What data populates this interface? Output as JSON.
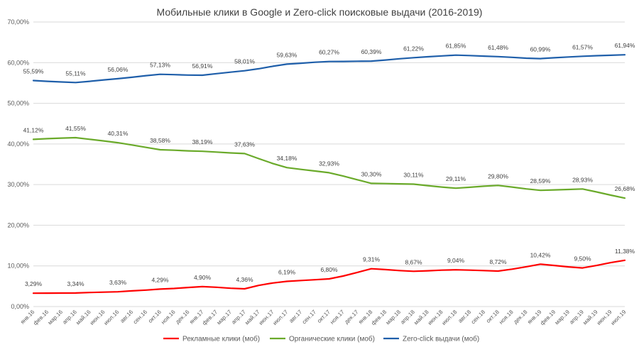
{
  "chart_data": {
    "type": "line",
    "title": "Мобильные клики в Google и Zero-click поисковые выдачи (2016-2019)",
    "x": [
      "янв.16",
      "фев.16",
      "мар.16",
      "апр.16",
      "май.16",
      "июн.16",
      "июл.16",
      "авг.16",
      "сен.16",
      "окт.16",
      "ноя.16",
      "дек.16",
      "янв.17",
      "фев.17",
      "мар.17",
      "апр.17",
      "май.17",
      "июн.17",
      "июл.17",
      "авг.17",
      "сен.17",
      "окт.17",
      "ноя.17",
      "дек.17",
      "янв.18",
      "фев.18",
      "мар.18",
      "апр.18",
      "май.18",
      "июн.18",
      "июл.18",
      "авг.18",
      "сен.18",
      "окт.18",
      "ноя.18",
      "дек.18",
      "янв.19",
      "фев.19",
      "мар.19",
      "апр.19",
      "май.19",
      "июн.19",
      "июл.19"
    ],
    "ylim": [
      0,
      70
    ],
    "yticks": [
      "0,00%",
      "10,00%",
      "20,00%",
      "30,00%",
      "40,00%",
      "50,00%",
      "60,00%",
      "70,00%"
    ],
    "grid": true,
    "legend_position": "bottom",
    "series": [
      {
        "name": "Рекламные клики (моб)",
        "color": "#ff0000",
        "values": [
          3.29,
          3.3,
          3.32,
          3.34,
          3.45,
          3.55,
          3.63,
          3.85,
          4.05,
          4.29,
          4.45,
          4.7,
          4.9,
          4.75,
          4.5,
          4.36,
          5.2,
          5.8,
          6.19,
          6.4,
          6.6,
          6.8,
          7.5,
          8.4,
          9.31,
          9.1,
          8.85,
          8.67,
          8.8,
          8.95,
          9.04,
          8.95,
          8.85,
          8.72,
          9.2,
          9.8,
          10.42,
          10.1,
          9.75,
          9.5,
          10.1,
          10.8,
          11.38
        ],
        "labels": [
          {
            "i": 0,
            "text": "3,29%"
          },
          {
            "i": 3,
            "text": "3,34%"
          },
          {
            "i": 6,
            "text": "3,63%"
          },
          {
            "i": 9,
            "text": "4,29%"
          },
          {
            "i": 12,
            "text": "4,90%"
          },
          {
            "i": 15,
            "text": "4,36%"
          },
          {
            "i": 18,
            "text": "6,19%"
          },
          {
            "i": 21,
            "text": "6,80%"
          },
          {
            "i": 24,
            "text": "9,31%"
          },
          {
            "i": 27,
            "text": "8,67%"
          },
          {
            "i": 30,
            "text": "9,04%"
          },
          {
            "i": 33,
            "text": "8,72%"
          },
          {
            "i": 36,
            "text": "10,42%"
          },
          {
            "i": 39,
            "text": "9,50%"
          },
          {
            "i": 42,
            "text": "11,38%"
          }
        ]
      },
      {
        "name": "Органические клики (моб)",
        "color": "#6aaa2a",
        "values": [
          41.12,
          41.3,
          41.45,
          41.55,
          41.15,
          40.75,
          40.31,
          39.75,
          39.15,
          38.58,
          38.45,
          38.3,
          38.19,
          38.0,
          37.8,
          37.63,
          36.4,
          35.2,
          34.18,
          33.75,
          33.35,
          32.93,
          32.1,
          31.2,
          30.3,
          30.25,
          30.18,
          30.11,
          29.75,
          29.4,
          29.11,
          29.35,
          29.6,
          29.8,
          29.4,
          28.95,
          28.59,
          28.7,
          28.8,
          28.93,
          28.2,
          27.4,
          26.68
        ],
        "labels": [
          {
            "i": 0,
            "text": "41,12%"
          },
          {
            "i": 3,
            "text": "41,55%"
          },
          {
            "i": 6,
            "text": "40,31%"
          },
          {
            "i": 9,
            "text": "38,58%"
          },
          {
            "i": 12,
            "text": "38,19%"
          },
          {
            "i": 15,
            "text": "37,63%"
          },
          {
            "i": 18,
            "text": "34,18%"
          },
          {
            "i": 21,
            "text": "32,93%"
          },
          {
            "i": 24,
            "text": "30,30%"
          },
          {
            "i": 27,
            "text": "30,11%"
          },
          {
            "i": 30,
            "text": "29,11%"
          },
          {
            "i": 33,
            "text": "29,80%"
          },
          {
            "i": 36,
            "text": "28,59%"
          },
          {
            "i": 39,
            "text": "28,93%"
          },
          {
            "i": 42,
            "text": "26,68%"
          }
        ]
      },
      {
        "name": "Zero-click выдачи (моб)",
        "color": "#1f5faa",
        "values": [
          55.59,
          55.4,
          55.25,
          55.11,
          55.4,
          55.75,
          56.06,
          56.4,
          56.8,
          57.13,
          57.05,
          56.95,
          56.91,
          57.3,
          57.65,
          58.01,
          58.5,
          59.1,
          59.63,
          59.85,
          60.1,
          60.27,
          60.3,
          60.35,
          60.39,
          60.65,
          60.95,
          61.22,
          61.45,
          61.65,
          61.85,
          61.75,
          61.6,
          61.48,
          61.3,
          61.1,
          60.99,
          61.2,
          61.4,
          61.57,
          61.7,
          61.82,
          61.94
        ],
        "labels": [
          {
            "i": 0,
            "text": "55,59%"
          },
          {
            "i": 3,
            "text": "55,11%"
          },
          {
            "i": 6,
            "text": "56,06%"
          },
          {
            "i": 9,
            "text": "57,13%"
          },
          {
            "i": 12,
            "text": "56,91%"
          },
          {
            "i": 15,
            "text": "58,01%"
          },
          {
            "i": 18,
            "text": "59,63%"
          },
          {
            "i": 21,
            "text": "60,27%"
          },
          {
            "i": 24,
            "text": "60,39%"
          },
          {
            "i": 27,
            "text": "61,22%"
          },
          {
            "i": 30,
            "text": "61,85%"
          },
          {
            "i": 33,
            "text": "61,48%"
          },
          {
            "i": 36,
            "text": "60,99%"
          },
          {
            "i": 39,
            "text": "61,57%"
          },
          {
            "i": 42,
            "text": "61,94%"
          }
        ]
      }
    ]
  }
}
